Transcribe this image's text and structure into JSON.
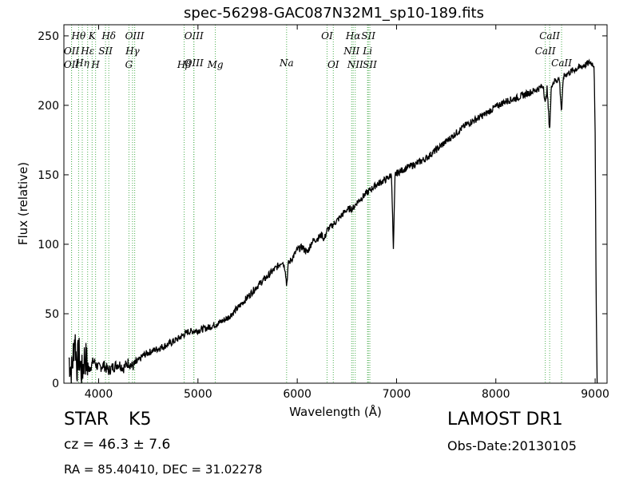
{
  "chart_data": {
    "type": "line",
    "title": "spec-56298-GAC087N32M1_sp10-189.fits",
    "xlabel": "Wavelength (Å)",
    "ylabel": "Flux (relative)",
    "xlim": [
      3650,
      9120
    ],
    "ylim": [
      0,
      258
    ],
    "xticks": [
      4000,
      5000,
      6000,
      7000,
      8000,
      9000
    ],
    "yticks": [
      0,
      50,
      100,
      150,
      200,
      250
    ],
    "grid": false,
    "line_color": "#000000",
    "marker_color": "#4caf50",
    "spectrum_points": [
      [
        3700,
        18
      ],
      [
        3730,
        8
      ],
      [
        3760,
        35
      ],
      [
        3780,
        12
      ],
      [
        3800,
        22
      ],
      [
        3830,
        6
      ],
      [
        3860,
        20
      ],
      [
        3900,
        10
      ],
      [
        3950,
        16
      ],
      [
        4000,
        11
      ],
      [
        4050,
        13
      ],
      [
        4100,
        9
      ],
      [
        4150,
        12
      ],
      [
        4200,
        14
      ],
      [
        4250,
        11
      ],
      [
        4300,
        15
      ],
      [
        4340,
        12
      ],
      [
        4400,
        16
      ],
      [
        4450,
        20
      ],
      [
        4500,
        22
      ],
      [
        4600,
        25
      ],
      [
        4700,
        28
      ],
      [
        4800,
        32
      ],
      [
        4860,
        35
      ],
      [
        4900,
        37
      ],
      [
        5000,
        38
      ],
      [
        5100,
        40
      ],
      [
        5200,
        43
      ],
      [
        5300,
        47
      ],
      [
        5400,
        54
      ],
      [
        5500,
        62
      ],
      [
        5600,
        70
      ],
      [
        5700,
        77
      ],
      [
        5800,
        84
      ],
      [
        5850,
        88
      ],
      [
        5880,
        82
      ],
      [
        5893,
        70
      ],
      [
        5910,
        86
      ],
      [
        5950,
        90
      ],
      [
        6000,
        96
      ],
      [
        6050,
        98
      ],
      [
        6100,
        94
      ],
      [
        6150,
        102
      ],
      [
        6200,
        104
      ],
      [
        6250,
        107
      ],
      [
        6270,
        103
      ],
      [
        6300,
        110
      ],
      [
        6400,
        117
      ],
      [
        6450,
        121
      ],
      [
        6500,
        125
      ],
      [
        6563,
        126
      ],
      [
        6600,
        130
      ],
      [
        6700,
        137
      ],
      [
        6800,
        143
      ],
      [
        6900,
        147
      ],
      [
        6950,
        150
      ],
      [
        6968,
        95
      ],
      [
        6985,
        150
      ],
      [
        7000,
        151
      ],
      [
        7100,
        155
      ],
      [
        7200,
        158
      ],
      [
        7300,
        162
      ],
      [
        7400,
        168
      ],
      [
        7500,
        174
      ],
      [
        7600,
        180
      ],
      [
        7700,
        186
      ],
      [
        7800,
        190
      ],
      [
        7900,
        194
      ],
      [
        8000,
        199
      ],
      [
        8100,
        203
      ],
      [
        8200,
        205
      ],
      [
        8300,
        208
      ],
      [
        8400,
        211
      ],
      [
        8480,
        214
      ],
      [
        8498,
        200
      ],
      [
        8515,
        213
      ],
      [
        8542,
        182
      ],
      [
        8560,
        215
      ],
      [
        8600,
        218
      ],
      [
        8640,
        219
      ],
      [
        8662,
        195
      ],
      [
        8680,
        220
      ],
      [
        8700,
        222
      ],
      [
        8800,
        226
      ],
      [
        8900,
        229
      ],
      [
        8950,
        231
      ],
      [
        8990,
        229
      ],
      [
        9000,
        180
      ],
      [
        9010,
        60
      ],
      [
        9020,
        0
      ]
    ],
    "line_markers": [
      {
        "label": "Hθ",
        "x": 3798,
        "row": 1
      },
      {
        "label": "OII",
        "x": 3727,
        "row": 2
      },
      {
        "label": "OII",
        "x": 3727,
        "row": 4
      },
      {
        "label": "Hη",
        "x": 3835,
        "row": 3
      },
      {
        "label": "Hε",
        "x": 3889,
        "row": 2
      },
      {
        "label": "K",
        "x": 3934,
        "row": 1
      },
      {
        "label": "SII",
        "x": 4069,
        "row": 2
      },
      {
        "label": "H",
        "x": 3969,
        "row": 4
      },
      {
        "label": "Hδ",
        "x": 4102,
        "row": 1
      },
      {
        "label": "OIII",
        "x": 4363,
        "row": 1
      },
      {
        "label": "Hγ",
        "x": 4341,
        "row": 2
      },
      {
        "label": "G",
        "x": 4305,
        "row": 4
      },
      {
        "label": "OIII",
        "x": 4959,
        "row": 1
      },
      {
        "label": "OIII",
        "x": 4959,
        "row": 3
      },
      {
        "label": "Hβ",
        "x": 4861,
        "row": 4
      },
      {
        "label": "Mg",
        "x": 5175,
        "row": 4
      },
      {
        "label": "Na",
        "x": 5893,
        "row": 3
      },
      {
        "label": "OI",
        "x": 6300,
        "row": 1
      },
      {
        "label": "OI",
        "x": 6363,
        "row": 4
      },
      {
        "label": "Hα",
        "x": 6563,
        "row": 1
      },
      {
        "label": "SII",
        "x": 6716,
        "row": 1
      },
      {
        "label": "NII",
        "x": 6548,
        "row": 2
      },
      {
        "label": "Li",
        "x": 6708,
        "row": 2
      },
      {
        "label": "NII",
        "x": 6584,
        "row": 4
      },
      {
        "label": "SII",
        "x": 6731,
        "row": 4
      },
      {
        "label": "CaII",
        "x": 8542,
        "row": 1
      },
      {
        "label": "CaII",
        "x": 8498,
        "row": 2
      },
      {
        "label": "CaII",
        "x": 8662,
        "row": 3
      }
    ]
  },
  "info": {
    "object_class": "STAR",
    "subclass": "K5",
    "survey": "LAMOST DR1",
    "cz_text": "cz = 46.3 ± 7.6",
    "obs_date": "Obs-Date:20130105",
    "radec": "RA = 85.40410, DEC = 31.02278"
  }
}
